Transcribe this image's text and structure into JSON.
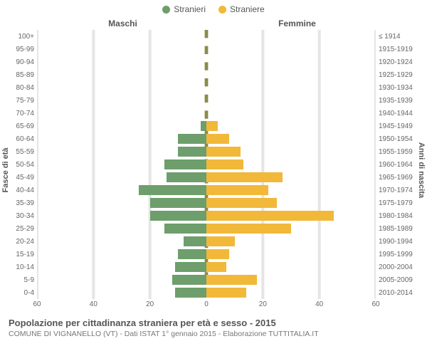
{
  "legend": {
    "male": {
      "label": "Stranieri",
      "color": "#6d9e6b"
    },
    "female": {
      "label": "Straniere",
      "color": "#f1b83a"
    }
  },
  "headers": {
    "male": "Maschi",
    "female": "Femmine"
  },
  "axis_labels": {
    "left": "Fasce di età",
    "right": "Anni di nascita"
  },
  "chart": {
    "type": "population-pyramid",
    "xmax": 60,
    "xticks": [
      60,
      40,
      20,
      0,
      20,
      40,
      60
    ],
    "grid_color": "#e5e5e5",
    "center_line_color": "#8a8a4a",
    "background_color": "#ffffff",
    "bar_height_ratio": 0.74,
    "rows": [
      {
        "age": "100+",
        "birth": "≤ 1914",
        "male": 0,
        "female": 0
      },
      {
        "age": "95-99",
        "birth": "1915-1919",
        "male": 0,
        "female": 0
      },
      {
        "age": "90-94",
        "birth": "1920-1924",
        "male": 0,
        "female": 0
      },
      {
        "age": "85-89",
        "birth": "1925-1929",
        "male": 0,
        "female": 0
      },
      {
        "age": "80-84",
        "birth": "1930-1934",
        "male": 0,
        "female": 0
      },
      {
        "age": "75-79",
        "birth": "1935-1939",
        "male": 0,
        "female": 0
      },
      {
        "age": "70-74",
        "birth": "1940-1944",
        "male": 0,
        "female": 0
      },
      {
        "age": "65-69",
        "birth": "1945-1949",
        "male": 2,
        "female": 4
      },
      {
        "age": "60-64",
        "birth": "1950-1954",
        "male": 10,
        "female": 8
      },
      {
        "age": "55-59",
        "birth": "1955-1959",
        "male": 10,
        "female": 12
      },
      {
        "age": "50-54",
        "birth": "1960-1964",
        "male": 15,
        "female": 13
      },
      {
        "age": "45-49",
        "birth": "1965-1969",
        "male": 14,
        "female": 27
      },
      {
        "age": "40-44",
        "birth": "1970-1974",
        "male": 24,
        "female": 22
      },
      {
        "age": "35-39",
        "birth": "1975-1979",
        "male": 20,
        "female": 25
      },
      {
        "age": "30-34",
        "birth": "1980-1984",
        "male": 20,
        "female": 45
      },
      {
        "age": "25-29",
        "birth": "1985-1989",
        "male": 15,
        "female": 30
      },
      {
        "age": "20-24",
        "birth": "1990-1994",
        "male": 8,
        "female": 10
      },
      {
        "age": "15-19",
        "birth": "1995-1999",
        "male": 10,
        "female": 8
      },
      {
        "age": "10-14",
        "birth": "2000-2004",
        "male": 11,
        "female": 7
      },
      {
        "age": "5-9",
        "birth": "2005-2009",
        "male": 12,
        "female": 18
      },
      {
        "age": "0-4",
        "birth": "2010-2014",
        "male": 11,
        "female": 14
      }
    ]
  },
  "footer": {
    "title": "Popolazione per cittadinanza straniera per età e sesso - 2015",
    "subtitle": "COMUNE DI VIGNANELLO (VT) - Dati ISTAT 1° gennaio 2015 - Elaborazione TUTTITALIA.IT"
  }
}
